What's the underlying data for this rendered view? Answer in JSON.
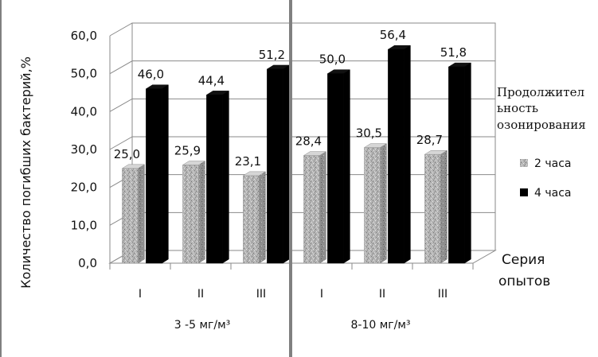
{
  "chart_data": {
    "type": "bar",
    "ylabel": "Количество погибших  бактерий,%",
    "xlabel": "Серия опытов",
    "xlabel_lines": [
      "Серия",
      "опытов"
    ],
    "ylim": [
      0,
      60
    ],
    "y_ticks": [
      "0,0",
      "10,0",
      "20,0",
      "30,0",
      "40,0",
      "50,0",
      "60,0"
    ],
    "categories": [
      "I",
      "II",
      "III",
      "I",
      "II",
      "III"
    ],
    "groups": [
      "3 -5 мг/м³",
      "8-10 мг/м³"
    ],
    "legend": {
      "title_lines": [
        "Продолжител",
        "ьность",
        "озонирования"
      ],
      "placement": "right"
    },
    "series": [
      {
        "name": "2 часа",
        "values": [
          25.0,
          25.9,
          23.1,
          28.4,
          30.5,
          28.7
        ],
        "labels": [
          "25,0",
          "25,9",
          "23,1",
          "28,4",
          "30,5",
          "28,7"
        ],
        "color": "#a8a8a8"
      },
      {
        "name": "4 часа",
        "values": [
          46.0,
          44.4,
          51.2,
          50.0,
          56.4,
          51.8
        ],
        "labels": [
          "46,0",
          "44,4",
          "51,2",
          "50,0",
          "56,4",
          "51,8"
        ],
        "color": "#000000"
      }
    ],
    "grid": true
  }
}
